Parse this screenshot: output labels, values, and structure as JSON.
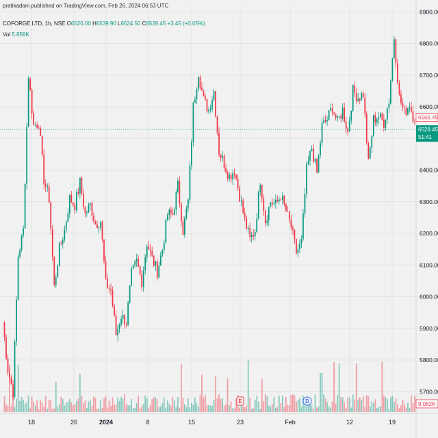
{
  "attribution": "pratikadani published on TradingView.com, Feb 26, 2024 06:53 UTC",
  "header": {
    "symbol": "COFORGE LTD, 1h, NSE",
    "ohlc": [
      {
        "key": "O",
        "value": "6526.00"
      },
      {
        "key": "H",
        "value": "6539.90"
      },
      {
        "key": "L",
        "value": "6524.50"
      },
      {
        "key": "C",
        "value": "6528.45"
      }
    ],
    "change": "+3.45 (+0.05%)",
    "vol_label": "Vol",
    "vol_value": "5.859K"
  },
  "colors": {
    "up": "#089981",
    "down": "#f23645",
    "background": "#f1f1f1",
    "grid": "#e2e2e2",
    "last_price_line": "#089981",
    "prev_close_tag": "#f7525f"
  },
  "chart_data": {
    "type": "candlestick",
    "y_range": [
      5640,
      6920
    ],
    "y_tick_labels": [
      "6900.00",
      "6800.00",
      "6700.00",
      "6600.00",
      "6500.00",
      "6400.00",
      "6300.00",
      "6200.00",
      "6100.00",
      "6000.00",
      "5900.00",
      "5800.00",
      "5700.00"
    ],
    "x_tick_labels": [
      "18",
      "26",
      "2024",
      "8",
      "15",
      "23",
      "Feb",
      "12",
      "19"
    ],
    "price_tags": [
      {
        "label": "6566.45",
        "kind": "prev-close"
      },
      {
        "label": "6528.45",
        "kind": "last-price"
      },
      {
        "label": "51:41",
        "kind": "countdown"
      }
    ],
    "volume_tag": "9.082K",
    "event_markers": [
      "E",
      "D"
    ],
    "series": [
      {
        "name": "COFORGE LTD",
        "close": [
          5920,
          5770,
          5700,
          6130,
          6210,
          6700,
          6540,
          6550,
          6370,
          6310,
          6030,
          6150,
          6210,
          6310,
          6290,
          6360,
          6260,
          6290,
          6230,
          6240,
          6040,
          6020,
          5880,
          5940,
          5920,
          6070,
          6110,
          6050,
          6170,
          6120,
          6080,
          6150,
          6260,
          6260,
          6350,
          6210,
          6300,
          6600,
          6710,
          6620,
          6590,
          6650,
          6460,
          6420,
          6380,
          6400,
          6320,
          6240,
          6180,
          6210,
          6370,
          6240,
          6300,
          6290,
          6320,
          6270,
          6220,
          6140,
          6170,
          6400,
          6470,
          6390,
          6540,
          6560,
          6600,
          6550,
          6590,
          6520,
          6650,
          6630,
          6640,
          6420,
          6560,
          6570,
          6550,
          6620,
          6820,
          6630,
          6580,
          6610,
          6550
        ]
      }
    ]
  }
}
